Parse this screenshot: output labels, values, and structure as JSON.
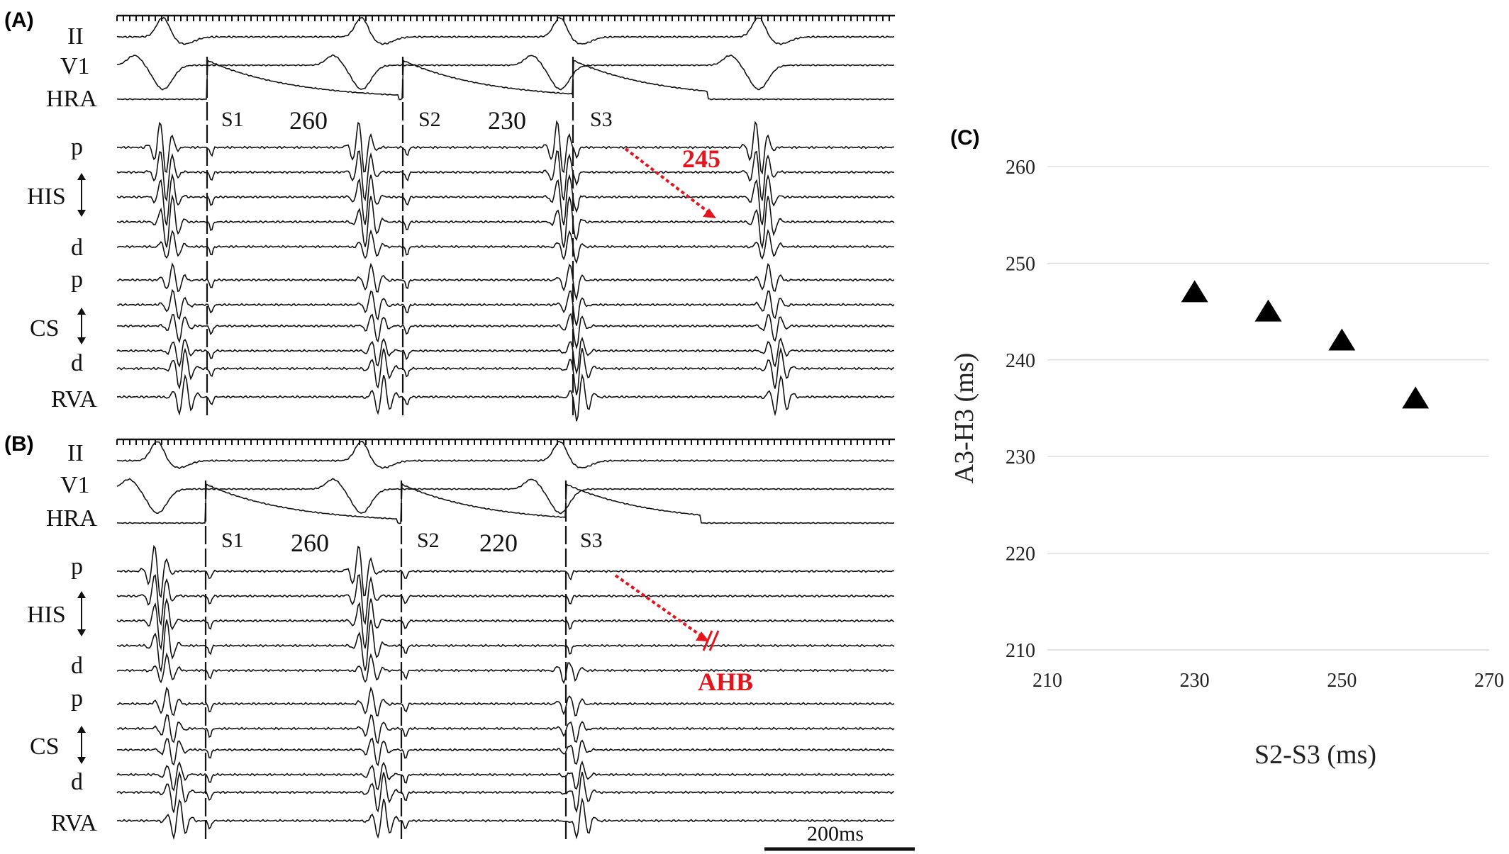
{
  "panels": {
    "A": {
      "tag": "(A)",
      "leads": [
        "II",
        "V1",
        "HRA",
        "p",
        "HIS",
        "d",
        "p",
        "CS",
        "d",
        "RVA"
      ],
      "stimuli": [
        "S1",
        "S2",
        "S3"
      ],
      "intervals": [
        "260",
        "230"
      ],
      "annotation": "245"
    },
    "B": {
      "tag": "(B)",
      "leads": [
        "II",
        "V1",
        "HRA",
        "p",
        "HIS",
        "d",
        "p",
        "CS",
        "d",
        "RVA"
      ],
      "stimuli": [
        "S1",
        "S2",
        "S3"
      ],
      "intervals": [
        "260",
        "220"
      ],
      "annotation": "AHB"
    },
    "C": {
      "tag": "(C)"
    }
  },
  "scale_bar": {
    "label": "200ms"
  },
  "colors": {
    "annotation_red": "#e3141c",
    "trace": "#111111",
    "grid": "#d9d9d9"
  },
  "chart_data": {
    "type": "scatter",
    "marker": "triangle",
    "x": [
      230,
      240,
      250,
      260
    ],
    "y": [
      247,
      245,
      242,
      236
    ],
    "xlabel": "S2-S3 (ms)",
    "ylabel": "A3-H3 (ms)",
    "xlim": [
      210,
      270
    ],
    "ylim": [
      210,
      260
    ],
    "xticks": [
      210,
      230,
      250,
      270
    ],
    "yticks": [
      210,
      220,
      230,
      240,
      250,
      260
    ],
    "grid": "horizontal"
  }
}
